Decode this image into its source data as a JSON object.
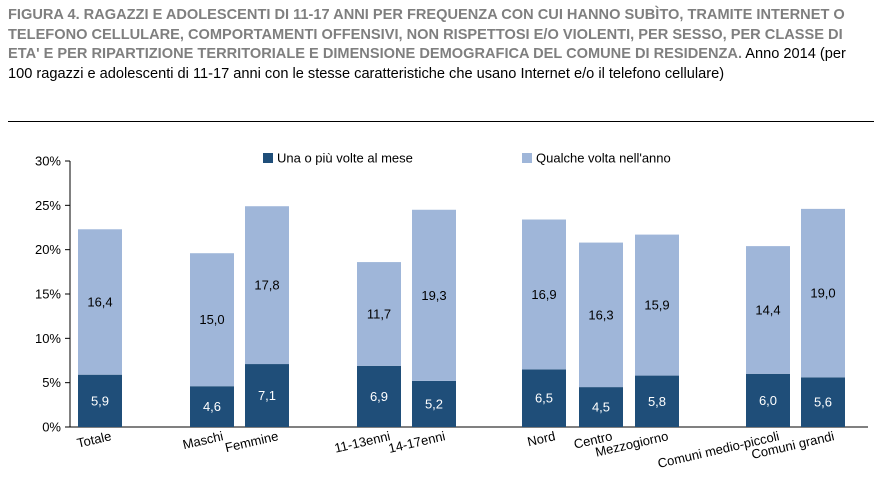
{
  "header": {
    "title": "FIGURA 4. RAGAZZI E ADOLESCENTI DI 11-17 ANNI PER FREQUENZA CON CUI HANNO SUBÌTO, TRAMITE INTERNET O TELEFONO CELLULARE, COMPORTAMENTI OFFENSIVI, NON RISPETTOSI E/O VIOLENTI, PER SESSO, PER CLASSE DI ETA' E PER RIPARTIZIONE TERRITORIALE E DIMENSIONE DEMOGRAFICA DEL COMUNE DI RESIDENZA.",
    "subtitle": "Anno 2014 (per 100 ragazzi e adolescenti di 11-17 anni con le stesse caratteristiche che usano Internet e/o il telefono cellulare)"
  },
  "colors": {
    "dark": "#1f4e79",
    "light": "#9fb6d9"
  },
  "chart_data": {
    "type": "bar",
    "stacked": true,
    "categories": [
      "Totale",
      "Maschi",
      "Femmine",
      "11-13enni",
      "14-17enni",
      "Nord",
      "Centro",
      "Mezzogiorno",
      "Comuni medio-piccoli",
      "Comuni grandi"
    ],
    "series": [
      {
        "name": "Una o più volte al mese",
        "values": [
          5.9,
          4.6,
          7.1,
          6.9,
          5.2,
          6.5,
          4.5,
          5.8,
          6.0,
          5.6
        ]
      },
      {
        "name": "Qualche volta nell'anno",
        "values": [
          16.4,
          15.0,
          17.8,
          11.7,
          19.3,
          16.9,
          16.3,
          15.9,
          14.4,
          19.0
        ]
      }
    ],
    "data_labels": {
      "series_0": [
        "5,9",
        "4,6",
        "7,1",
        "6,9",
        "5,2",
        "6,5",
        "4,5",
        "5,8",
        "6,0",
        "5,6"
      ],
      "series_1": [
        "16,4",
        "15,0",
        "17,8",
        "11,7",
        "19,3",
        "16,9",
        "16,3",
        "15,9",
        "14,4",
        "19,0"
      ]
    },
    "ylim": [
      0,
      30
    ],
    "yticks": [
      "0%",
      "5%",
      "10%",
      "15%",
      "20%",
      "25%",
      "30%"
    ],
    "legend_position": "top",
    "grid": false
  }
}
